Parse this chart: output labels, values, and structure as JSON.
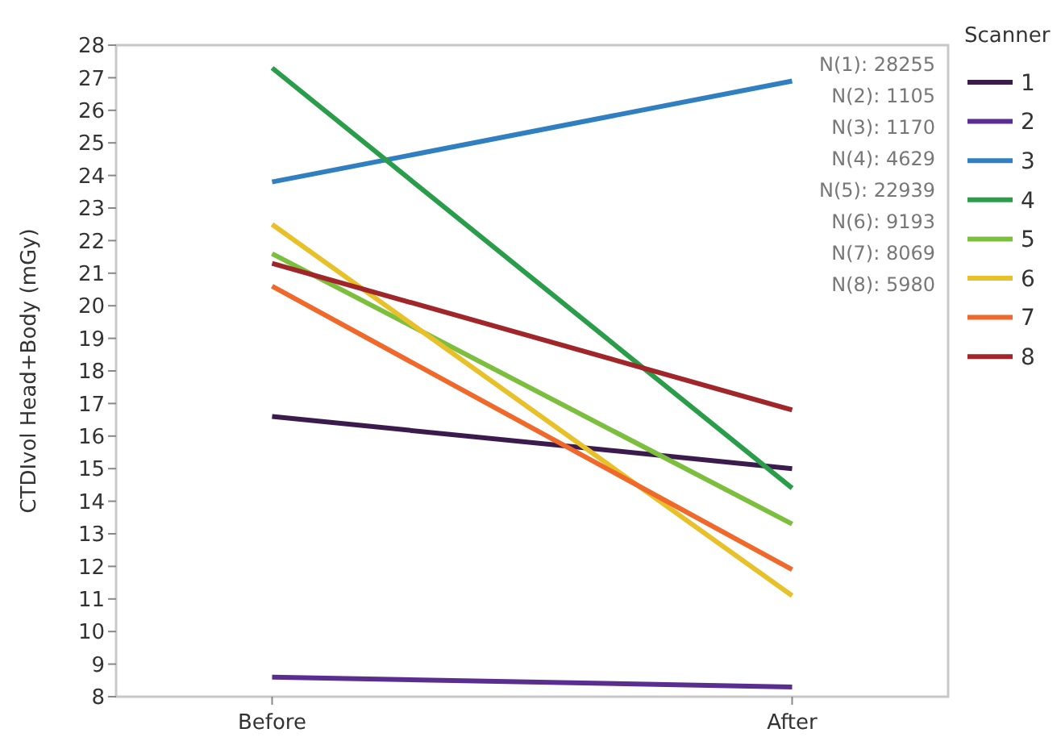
{
  "chart_data": {
    "type": "line",
    "ylabel": "CTDIvol Head+Body (mGy)",
    "legend_title": "Scanner",
    "categories": [
      "Before",
      "After"
    ],
    "series": [
      {
        "name": "1",
        "color": "#3b1a4e",
        "values": [
          16.6,
          15.0
        ]
      },
      {
        "name": "2",
        "color": "#5a2d91",
        "values": [
          8.6,
          8.3
        ]
      },
      {
        "name": "3",
        "color": "#2f7fc1",
        "values": [
          23.8,
          26.9
        ]
      },
      {
        "name": "4",
        "color": "#2a9d4a",
        "values": [
          27.3,
          14.4
        ]
      },
      {
        "name": "5",
        "color": "#7cbf3f",
        "values": [
          21.6,
          13.3
        ]
      },
      {
        "name": "6",
        "color": "#e8c02a",
        "values": [
          22.5,
          11.1
        ]
      },
      {
        "name": "7",
        "color": "#f0682a",
        "values": [
          20.6,
          11.9
        ]
      },
      {
        "name": "8",
        "color": "#a0262a",
        "values": [
          21.3,
          16.8
        ]
      }
    ],
    "ylim": [
      8,
      28
    ],
    "yticks": [
      8,
      9,
      10,
      11,
      12,
      13,
      14,
      15,
      16,
      17,
      18,
      19,
      20,
      21,
      22,
      23,
      24,
      25,
      26,
      27,
      28
    ],
    "grid": false,
    "legend": "right",
    "marker": "none",
    "line_style": "solid",
    "annotations": [
      "N(1): 28255",
      "N(2): 1105",
      "N(3): 1170",
      "N(4): 4629",
      "N(5): 22939",
      "N(6): 9193",
      "N(7): 8069",
      "N(8): 5980"
    ]
  }
}
